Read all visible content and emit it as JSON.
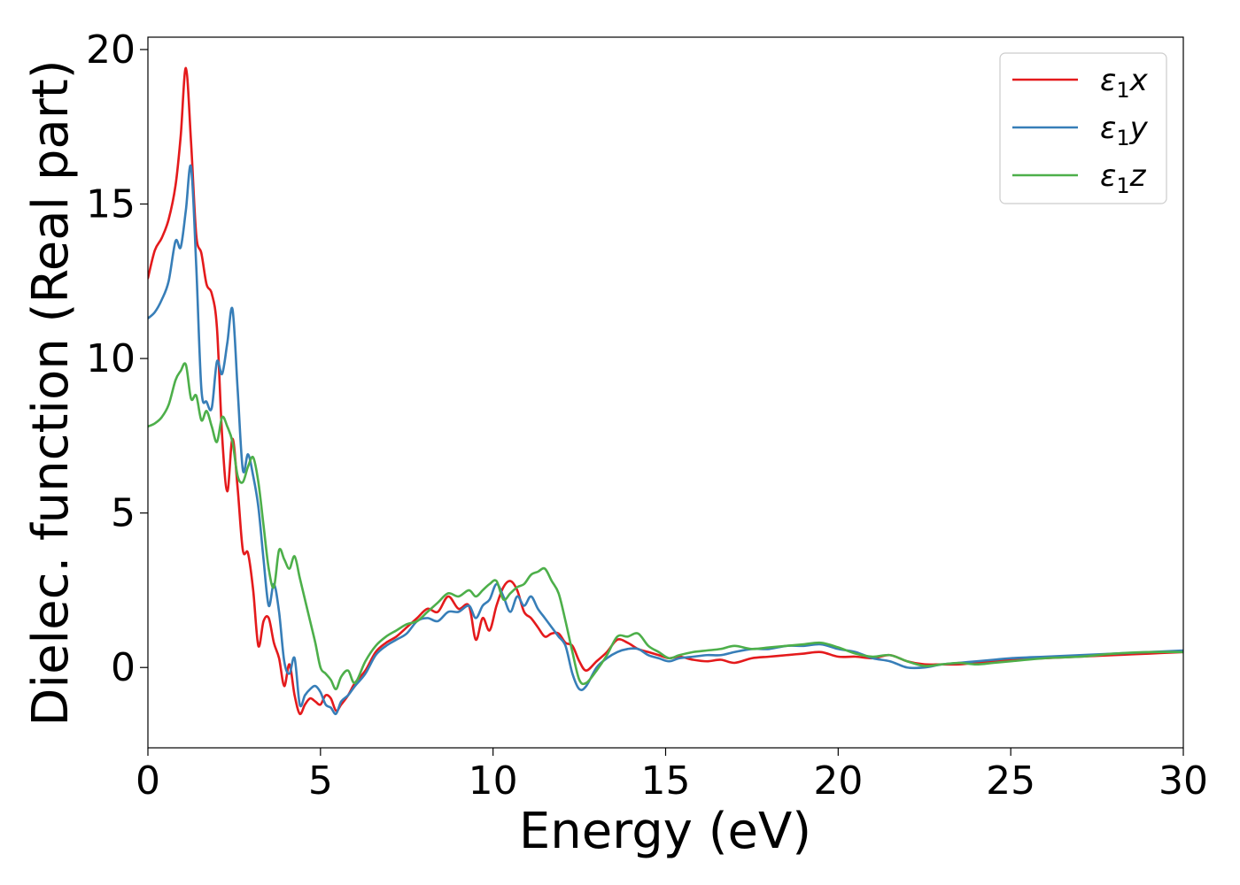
{
  "chart_data": {
    "type": "line",
    "title": "",
    "xlabel": "Energy (eV)",
    "ylabel": "Dielec. function (Real part)",
    "xlim": [
      0,
      30
    ],
    "ylim": [
      -2.6,
      20.4
    ],
    "xticks": [
      0,
      5,
      10,
      15,
      20,
      25,
      30
    ],
    "yticks": [
      0,
      5,
      10,
      15,
      20
    ],
    "grid": false,
    "legend_position": "top-right",
    "series": [
      {
        "name": "ε₁x",
        "name_parts": {
          "base": "ε",
          "sub": "1",
          "suffix": "x"
        },
        "color": "#e41a1c",
        "x": [
          0,
          0.2,
          0.4,
          0.6,
          0.8,
          0.95,
          1.1,
          1.25,
          1.4,
          1.55,
          1.7,
          1.85,
          2.0,
          2.15,
          2.3,
          2.45,
          2.6,
          2.75,
          2.9,
          3.05,
          3.2,
          3.35,
          3.5,
          3.65,
          3.8,
          3.95,
          4.1,
          4.25,
          4.4,
          4.55,
          4.7,
          4.85,
          5.0,
          5.15,
          5.3,
          5.45,
          5.6,
          5.8,
          6.0,
          6.3,
          6.6,
          6.9,
          7.2,
          7.5,
          7.8,
          8.1,
          8.4,
          8.7,
          9.0,
          9.3,
          9.5,
          9.7,
          9.9,
          10.1,
          10.3,
          10.5,
          10.7,
          10.9,
          11.1,
          11.3,
          11.5,
          11.7,
          11.9,
          12.1,
          12.3,
          12.5,
          12.7,
          13.0,
          13.3,
          13.6,
          13.9,
          14.2,
          14.5,
          14.8,
          15.1,
          15.4,
          15.8,
          16.2,
          16.6,
          17.0,
          17.5,
          18.0,
          18.5,
          19.0,
          19.5,
          20.0,
          20.5,
          21.0,
          21.5,
          22.0,
          22.5,
          23.0,
          23.5,
          24.0,
          24.5,
          25.0,
          26.0,
          27.0,
          28.0,
          29.0,
          30.0
        ],
        "values": [
          12.6,
          13.5,
          13.9,
          14.5,
          15.6,
          17.2,
          19.4,
          17.0,
          14.0,
          13.4,
          12.4,
          12.1,
          11.0,
          7.5,
          5.7,
          7.4,
          5.8,
          3.8,
          3.7,
          2.5,
          0.7,
          1.5,
          1.6,
          0.8,
          0.3,
          -0.6,
          0.1,
          -0.9,
          -1.5,
          -1.2,
          -1.0,
          -1.1,
          -1.2,
          -0.9,
          -1.0,
          -1.4,
          -1.2,
          -0.9,
          -0.5,
          -0.1,
          0.5,
          0.8,
          1.0,
          1.3,
          1.6,
          1.9,
          1.8,
          2.3,
          1.9,
          2.0,
          0.9,
          1.6,
          1.2,
          2.0,
          2.6,
          2.8,
          2.5,
          1.8,
          1.6,
          1.3,
          1.0,
          1.1,
          1.1,
          0.8,
          0.7,
          0.2,
          -0.1,
          0.2,
          0.5,
          0.9,
          0.8,
          0.6,
          0.5,
          0.4,
          0.3,
          0.35,
          0.25,
          0.2,
          0.25,
          0.15,
          0.3,
          0.35,
          0.4,
          0.45,
          0.5,
          0.35,
          0.35,
          0.3,
          0.4,
          0.2,
          0.1,
          0.1,
          0.1,
          0.15,
          0.2,
          0.25,
          0.3,
          0.35,
          0.4,
          0.45,
          0.5
        ]
      },
      {
        "name": "ε₁y",
        "name_parts": {
          "base": "ε",
          "sub": "1",
          "suffix": "y"
        },
        "color": "#377eb8",
        "x": [
          0,
          0.2,
          0.4,
          0.6,
          0.8,
          0.95,
          1.1,
          1.25,
          1.4,
          1.55,
          1.7,
          1.85,
          2.0,
          2.15,
          2.3,
          2.45,
          2.6,
          2.75,
          2.9,
          3.05,
          3.2,
          3.35,
          3.5,
          3.65,
          3.8,
          3.95,
          4.1,
          4.25,
          4.4,
          4.55,
          4.7,
          4.85,
          5.0,
          5.15,
          5.3,
          5.45,
          5.6,
          5.8,
          6.0,
          6.3,
          6.6,
          6.9,
          7.2,
          7.5,
          7.8,
          8.1,
          8.4,
          8.7,
          9.0,
          9.3,
          9.5,
          9.7,
          9.9,
          10.1,
          10.3,
          10.5,
          10.7,
          10.9,
          11.1,
          11.3,
          11.5,
          11.7,
          11.9,
          12.1,
          12.3,
          12.5,
          12.7,
          13.0,
          13.3,
          13.6,
          13.9,
          14.2,
          14.5,
          14.8,
          15.1,
          15.4,
          15.8,
          16.2,
          16.6,
          17.0,
          17.5,
          18.0,
          18.5,
          19.0,
          19.5,
          20.0,
          20.5,
          21.0,
          21.5,
          22.0,
          22.5,
          23.0,
          23.5,
          24.0,
          24.5,
          25.0,
          26.0,
          27.0,
          28.0,
          29.0,
          30.0
        ],
        "values": [
          11.3,
          11.5,
          11.9,
          12.5,
          13.8,
          13.6,
          14.8,
          16.2,
          13.0,
          9.0,
          8.6,
          8.4,
          9.9,
          9.5,
          10.5,
          11.6,
          9.0,
          6.4,
          6.9,
          6.2,
          5.2,
          3.5,
          2.0,
          2.7,
          1.8,
          0.2,
          -0.2,
          0.3,
          -1.2,
          -0.9,
          -0.7,
          -0.6,
          -0.8,
          -1.2,
          -1.3,
          -1.5,
          -1.1,
          -0.9,
          -0.6,
          -0.2,
          0.4,
          0.7,
          0.9,
          1.1,
          1.5,
          1.6,
          1.5,
          1.8,
          1.8,
          2.0,
          1.6,
          2.0,
          2.2,
          2.7,
          2.3,
          1.8,
          2.3,
          2.0,
          2.3,
          1.9,
          1.6,
          1.3,
          1.0,
          0.7,
          -0.2,
          -0.7,
          -0.6,
          0.0,
          0.3,
          0.5,
          0.6,
          0.6,
          0.4,
          0.3,
          0.2,
          0.3,
          0.35,
          0.4,
          0.4,
          0.5,
          0.6,
          0.6,
          0.7,
          0.7,
          0.75,
          0.6,
          0.5,
          0.3,
          0.2,
          0.0,
          0.0,
          0.1,
          0.15,
          0.2,
          0.25,
          0.3,
          0.35,
          0.4,
          0.45,
          0.5,
          0.55
        ]
      },
      {
        "name": "ε₁z",
        "name_parts": {
          "base": "ε",
          "sub": "1",
          "suffix": "z"
        },
        "color": "#4daf4a",
        "x": [
          0,
          0.2,
          0.4,
          0.6,
          0.8,
          0.95,
          1.1,
          1.25,
          1.4,
          1.55,
          1.7,
          1.85,
          2.0,
          2.15,
          2.3,
          2.45,
          2.6,
          2.75,
          2.9,
          3.05,
          3.2,
          3.35,
          3.5,
          3.65,
          3.8,
          3.95,
          4.1,
          4.25,
          4.4,
          4.55,
          4.7,
          4.85,
          5.0,
          5.15,
          5.3,
          5.45,
          5.6,
          5.8,
          6.0,
          6.3,
          6.6,
          6.9,
          7.2,
          7.5,
          7.8,
          8.1,
          8.4,
          8.7,
          9.0,
          9.3,
          9.5,
          9.7,
          9.9,
          10.1,
          10.3,
          10.5,
          10.7,
          10.9,
          11.1,
          11.3,
          11.5,
          11.7,
          11.9,
          12.1,
          12.3,
          12.5,
          12.7,
          13.0,
          13.3,
          13.6,
          13.9,
          14.2,
          14.5,
          14.8,
          15.1,
          15.4,
          15.8,
          16.2,
          16.6,
          17.0,
          17.5,
          18.0,
          18.5,
          19.0,
          19.5,
          20.0,
          20.5,
          21.0,
          21.5,
          22.0,
          22.5,
          23.0,
          23.5,
          24.0,
          24.5,
          25.0,
          26.0,
          27.0,
          28.0,
          29.0,
          30.0
        ],
        "values": [
          7.8,
          7.9,
          8.1,
          8.5,
          9.3,
          9.6,
          9.8,
          8.7,
          8.8,
          8.0,
          8.3,
          7.8,
          7.3,
          8.1,
          7.8,
          7.3,
          6.2,
          6.0,
          6.5,
          6.8,
          6.0,
          4.6,
          3.2,
          2.6,
          3.8,
          3.5,
          3.2,
          3.6,
          2.9,
          2.2,
          1.5,
          0.8,
          0.0,
          -0.2,
          -0.4,
          -0.7,
          -0.3,
          -0.1,
          -0.5,
          0.2,
          0.7,
          1.0,
          1.2,
          1.4,
          1.5,
          1.8,
          2.1,
          2.4,
          2.3,
          2.5,
          2.3,
          2.5,
          2.7,
          2.8,
          2.2,
          2.4,
          2.6,
          2.7,
          3.0,
          3.1,
          3.2,
          2.8,
          2.4,
          1.5,
          0.5,
          -0.4,
          -0.5,
          -0.1,
          0.4,
          1.0,
          1.0,
          1.1,
          0.7,
          0.5,
          0.3,
          0.4,
          0.5,
          0.55,
          0.6,
          0.7,
          0.6,
          0.65,
          0.7,
          0.75,
          0.8,
          0.65,
          0.45,
          0.35,
          0.4,
          0.2,
          0.05,
          0.1,
          0.15,
          0.1,
          0.15,
          0.2,
          0.3,
          0.35,
          0.45,
          0.5,
          0.5
        ]
      }
    ]
  }
}
